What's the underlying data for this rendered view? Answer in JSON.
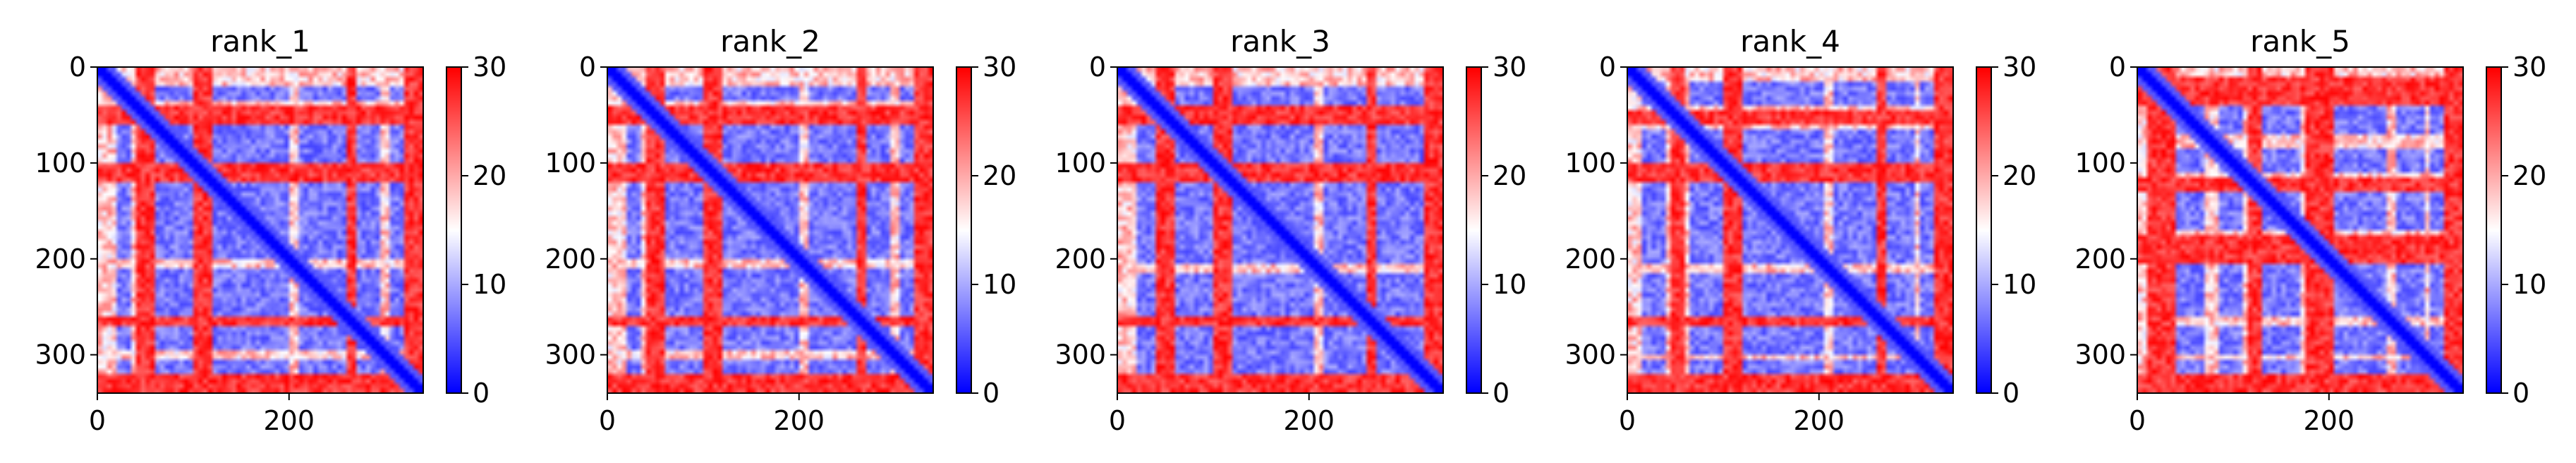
{
  "chart_data": [
    {
      "type": "heatmap",
      "title": "rank_1",
      "xlim": [
        0,
        340
      ],
      "ylim": [
        340,
        0
      ],
      "x_ticks": [
        0,
        200
      ],
      "y_ticks": [
        0,
        100,
        200,
        300
      ],
      "colorbar": {
        "min": 0,
        "max": 30,
        "ticks": [
          0,
          10,
          20,
          30
        ],
        "colormap": [
          "#0000ff",
          "#ffffff",
          "#ff0000"
        ]
      }
    },
    {
      "type": "heatmap",
      "title": "rank_2",
      "xlim": [
        0,
        340
      ],
      "ylim": [
        340,
        0
      ],
      "x_ticks": [
        0,
        200
      ],
      "y_ticks": [
        0,
        100,
        200,
        300
      ],
      "colorbar": {
        "min": 0,
        "max": 30,
        "ticks": [
          0,
          10,
          20,
          30
        ],
        "colormap": [
          "#0000ff",
          "#ffffff",
          "#ff0000"
        ]
      }
    },
    {
      "type": "heatmap",
      "title": "rank_3",
      "xlim": [
        0,
        340
      ],
      "ylim": [
        340,
        0
      ],
      "x_ticks": [
        0,
        200
      ],
      "y_ticks": [
        0,
        100,
        200,
        300
      ],
      "colorbar": {
        "min": 0,
        "max": 30,
        "ticks": [
          0,
          10,
          20,
          30
        ],
        "colormap": [
          "#0000ff",
          "#ffffff",
          "#ff0000"
        ]
      }
    },
    {
      "type": "heatmap",
      "title": "rank_4",
      "xlim": [
        0,
        340
      ],
      "ylim": [
        340,
        0
      ],
      "x_ticks": [
        0,
        200
      ],
      "y_ticks": [
        0,
        100,
        200,
        300
      ],
      "colorbar": {
        "min": 0,
        "max": 30,
        "ticks": [
          0,
          10,
          20,
          30
        ],
        "colormap": [
          "#0000ff",
          "#ffffff",
          "#ff0000"
        ]
      }
    },
    {
      "type": "heatmap",
      "title": "rank_5",
      "xlim": [
        0,
        340
      ],
      "ylim": [
        340,
        0
      ],
      "x_ticks": [
        0,
        200
      ],
      "y_ticks": [
        0,
        100,
        200,
        300
      ],
      "colorbar": {
        "min": 0,
        "max": 30,
        "ticks": [
          0,
          10,
          20,
          30
        ],
        "colormap": [
          "#0000ff",
          "#ffffff",
          "#ff0000"
        ]
      }
    }
  ]
}
